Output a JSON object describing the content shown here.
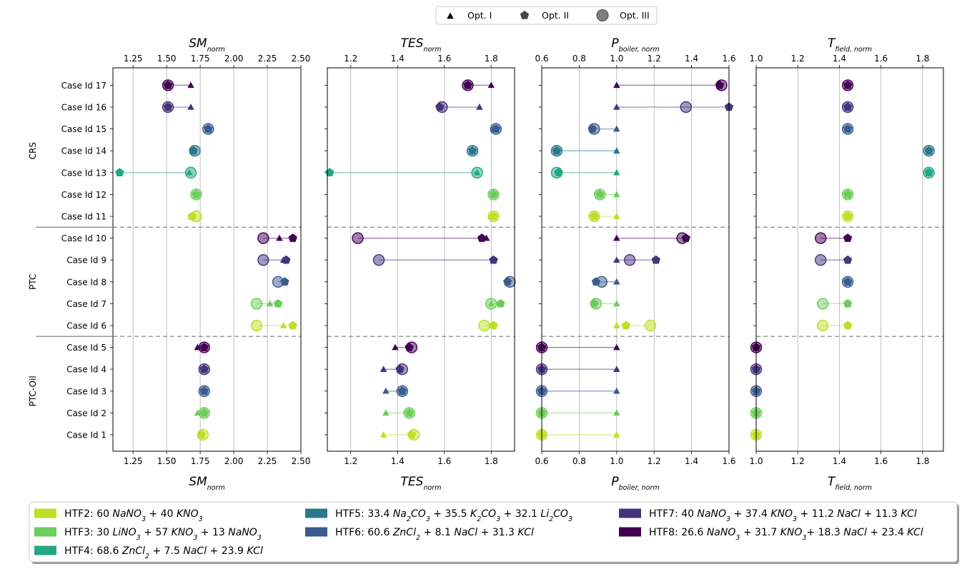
{
  "chart_data": {
    "type": "dumbbell",
    "categories": [
      "Case Id 1",
      "Case Id 2",
      "Case Id 3",
      "Case Id 4",
      "Case Id 5",
      "Case Id 6",
      "Case Id 7",
      "Case Id 8",
      "Case Id 9",
      "Case Id 10",
      "Case Id 11",
      "Case Id 12",
      "Case Id 13",
      "Case Id 14",
      "Case Id 15",
      "Case Id 16",
      "Case Id 17"
    ],
    "groups": [
      {
        "name": "PTC-Oil",
        "cases": [
          1,
          2,
          3,
          4,
          5
        ]
      },
      {
        "name": "PTC",
        "cases": [
          6,
          7,
          8,
          9,
          10
        ]
      },
      {
        "name": "CRS",
        "cases": [
          11,
          12,
          13,
          14,
          15,
          16,
          17
        ]
      }
    ],
    "case_htf": [
      2,
      3,
      6,
      7,
      8,
      2,
      3,
      6,
      7,
      8,
      2,
      3,
      4,
      5,
      6,
      7,
      8
    ],
    "marker_legend": [
      {
        "symbol": "triangle",
        "label": "Opt. I"
      },
      {
        "symbol": "pentagon",
        "label": "Opt. II"
      },
      {
        "symbol": "circle",
        "label": "Opt. III"
      }
    ],
    "htf_legend": [
      {
        "id": 2,
        "color": "#bddf26",
        "parts": [
          [
            "HTF2: 60 ",
            ""
          ],
          [
            "NaNO",
            "i"
          ],
          [
            "3",
            "s"
          ],
          [
            " + 40 ",
            ""
          ],
          [
            "KNO",
            "i"
          ],
          [
            "3",
            "s"
          ]
        ]
      },
      {
        "id": 3,
        "color": "#6ccd5a",
        "parts": [
          [
            "HTF3: 30 ",
            ""
          ],
          [
            "LiNO",
            "i"
          ],
          [
            "3",
            "s"
          ],
          [
            " + 57 ",
            ""
          ],
          [
            "KNO",
            "i"
          ],
          [
            "3",
            "s"
          ],
          [
            " + 13 ",
            ""
          ],
          [
            "NaNO",
            "i"
          ],
          [
            "3",
            "s"
          ]
        ]
      },
      {
        "id": 4,
        "color": "#22a884",
        "parts": [
          [
            "HTF4: 68.6 ",
            ""
          ],
          [
            "ZnCl",
            "i"
          ],
          [
            "2",
            "s"
          ],
          [
            " + 7.5 ",
            ""
          ],
          [
            "NaCl",
            "i"
          ],
          [
            " + 23.9 ",
            ""
          ],
          [
            "KCl",
            "i"
          ]
        ]
      },
      {
        "id": 5,
        "color": "#2a788e",
        "parts": [
          [
            "HTF5: 33.4 ",
            ""
          ],
          [
            "Na",
            "i"
          ],
          [
            "2",
            "s"
          ],
          [
            "CO",
            "i"
          ],
          [
            "3",
            "s"
          ],
          [
            " + 35.5 ",
            ""
          ],
          [
            "K",
            "i"
          ],
          [
            "2",
            "s"
          ],
          [
            "CO",
            "i"
          ],
          [
            "3",
            "s"
          ],
          [
            " + 32.1 ",
            ""
          ],
          [
            "Li",
            "i"
          ],
          [
            "2",
            "s"
          ],
          [
            "CO",
            "i"
          ],
          [
            "3",
            "s"
          ]
        ]
      },
      {
        "id": 6,
        "color": "#3b5b8e",
        "parts": [
          [
            "HTF6: 60.6 ",
            ""
          ],
          [
            "ZnCl",
            "i"
          ],
          [
            "2",
            "s"
          ],
          [
            " + 8.1 ",
            ""
          ],
          [
            "NaCl",
            "i"
          ],
          [
            " + 31.3 ",
            ""
          ],
          [
            "KCl",
            "i"
          ]
        ]
      },
      {
        "id": 7,
        "color": "#46337e",
        "parts": [
          [
            "HTF7: 40 ",
            ""
          ],
          [
            "NaNO",
            "i"
          ],
          [
            "3",
            "s"
          ],
          [
            " + 37.4 ",
            ""
          ],
          [
            "KNO",
            "i"
          ],
          [
            "3",
            "s"
          ],
          [
            " + 11.2 ",
            ""
          ],
          [
            "NaCl",
            "i"
          ],
          [
            " + 11.3 ",
            ""
          ],
          [
            "KCl",
            "i"
          ]
        ]
      },
      {
        "id": 8,
        "color": "#440154",
        "parts": [
          [
            "HTF8: 26.6 ",
            ""
          ],
          [
            "NaNO",
            "i"
          ],
          [
            "3",
            "s"
          ],
          [
            " + 31.7 ",
            ""
          ],
          [
            "KNO",
            "i"
          ],
          [
            "3",
            "s"
          ],
          [
            "+ 18.3 ",
            ""
          ],
          [
            "NaCl",
            "i"
          ],
          [
            " + 23.4 ",
            ""
          ],
          [
            "KCl",
            "i"
          ]
        ]
      }
    ],
    "panels": [
      {
        "key": "SM",
        "title_main": "SM",
        "title_sub": "norm",
        "xlim": [
          1.1,
          2.5
        ],
        "ticks": [
          1.25,
          1.5,
          1.75,
          2.0,
          2.25,
          2.5
        ],
        "tick_labels": [
          "1.25",
          "1.50",
          "1.75",
          "2.00",
          "2.25",
          "2.50"
        ],
        "opt1": [
          1.75,
          1.73,
          1.78,
          1.78,
          1.73,
          2.37,
          2.27,
          2.38,
          2.37,
          2.34,
          1.68,
          1.72,
          1.67,
          1.7,
          1.81,
          1.68,
          1.68
        ],
        "opt2": [
          1.76,
          1.78,
          1.78,
          1.78,
          1.78,
          2.44,
          2.33,
          2.38,
          2.39,
          2.44,
          1.69,
          1.72,
          1.15,
          1.7,
          1.81,
          1.51,
          1.51
        ],
        "opt3": [
          1.77,
          1.78,
          1.78,
          1.78,
          1.78,
          2.17,
          2.17,
          2.33,
          2.22,
          2.22,
          1.72,
          1.72,
          1.68,
          1.71,
          1.81,
          1.51,
          1.51
        ]
      },
      {
        "key": "TES",
        "title_main": "TES",
        "title_sub": "norm",
        "xlim": [
          1.1,
          1.9
        ],
        "ticks": [
          1.2,
          1.4,
          1.6,
          1.8
        ],
        "tick_labels": [
          "1.2",
          "1.4",
          "1.6",
          "1.8"
        ],
        "opt1": [
          1.34,
          1.35,
          1.35,
          1.34,
          1.39,
          1.8,
          1.8,
          1.87,
          1.81,
          1.78,
          1.8,
          1.81,
          1.74,
          1.72,
          1.81,
          1.75,
          1.8
        ],
        "opt2": [
          1.46,
          1.45,
          1.42,
          1.41,
          1.45,
          1.81,
          1.84,
          1.87,
          1.81,
          1.76,
          1.81,
          1.81,
          1.11,
          1.72,
          1.82,
          1.58,
          1.7
        ],
        "opt3": [
          1.47,
          1.45,
          1.42,
          1.42,
          1.46,
          1.77,
          1.8,
          1.88,
          1.32,
          1.23,
          1.81,
          1.81,
          1.74,
          1.72,
          1.82,
          1.59,
          1.7
        ]
      },
      {
        "key": "P",
        "title_main": "P",
        "title_sub": "boiler, norm",
        "xlim": [
          0.6,
          1.6
        ],
        "ticks": [
          0.6,
          0.8,
          1.0,
          1.2,
          1.4,
          1.6
        ],
        "tick_labels": [
          "0.6",
          "0.8",
          "1.0",
          "1.2",
          "1.4",
          "1.6"
        ],
        "opt1": [
          1.0,
          1.0,
          1.0,
          1.0,
          1.0,
          1.0,
          1.0,
          1.0,
          1.0,
          1.0,
          1.0,
          1.0,
          1.0,
          1.0,
          1.0,
          1.0,
          1.0
        ],
        "opt2": [
          0.6,
          0.6,
          0.6,
          0.6,
          0.6,
          1.05,
          0.88,
          0.89,
          1.21,
          1.37,
          0.88,
          0.91,
          0.69,
          0.68,
          0.87,
          1.6,
          1.55
        ],
        "opt3": [
          0.6,
          0.6,
          0.6,
          0.6,
          0.6,
          1.18,
          0.89,
          0.92,
          1.07,
          1.35,
          0.88,
          0.91,
          0.68,
          0.68,
          0.88,
          1.37,
          1.56
        ]
      },
      {
        "key": "T",
        "title_main": "T",
        "title_sub": "field, norm",
        "xlim": [
          1.0,
          1.9
        ],
        "ticks": [
          1.0,
          1.2,
          1.4,
          1.6,
          1.8
        ],
        "tick_labels": [
          "1.0",
          "1.2",
          "1.4",
          "1.6",
          "1.8"
        ],
        "opt1": [
          1.0,
          1.0,
          1.0,
          1.0,
          1.0,
          1.44,
          1.44,
          1.44,
          1.44,
          1.44,
          1.44,
          1.44,
          1.83,
          1.83,
          1.44,
          1.44,
          1.44
        ],
        "opt2": [
          1.0,
          1.0,
          1.0,
          1.0,
          1.0,
          1.44,
          1.44,
          1.44,
          1.44,
          1.44,
          1.44,
          1.44,
          1.83,
          1.83,
          1.44,
          1.44,
          1.44
        ],
        "opt3": [
          1.0,
          1.0,
          1.0,
          1.0,
          1.0,
          1.32,
          1.32,
          1.44,
          1.31,
          1.31,
          1.44,
          1.44,
          1.83,
          1.83,
          1.44,
          1.44,
          1.44
        ]
      }
    ]
  }
}
